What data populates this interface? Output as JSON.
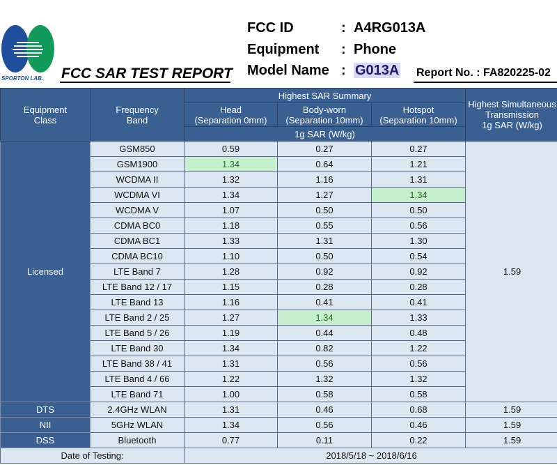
{
  "header": {
    "logo_text": "SPORTON LAB.",
    "report_title": "FCC SAR TEST REPORT",
    "fcc_id_label": "FCC ID",
    "fcc_id": "A4RG013A",
    "equipment_label": "Equipment",
    "equipment": "Phone",
    "model_label": "Model Name",
    "model": "G013A",
    "colon": ":",
    "report_no": "Report No. : FA820225-02"
  },
  "colors": {
    "header_bg": "#3a5f91",
    "cell_bg": "#dce6f1",
    "highlight": "#c6efce"
  },
  "table": {
    "col_equipment_class": "Equipment Class",
    "col_frequency_band": "Frequency Band",
    "summary": "Highest SAR Summary",
    "col_head": "Head",
    "col_head_sub": "(Separation 0mm)",
    "col_body": "Body-worn",
    "col_body_sub": "(Separation 10mm)",
    "col_hotspot": "Hotspot",
    "col_hotspot_sub": "(Separation 10mm)",
    "unit": "1g SAR (W/kg)",
    "col_simul": "Highest Simultaneous Transmission",
    "col_simul_unit": "1g SAR (W/kg)",
    "licensed_class": "Licensed",
    "licensed_simul": "1.59",
    "licensed_rows": [
      {
        "band": "GSM850",
        "head": "0.59",
        "body": "0.27",
        "hotspot": "0.27",
        "hl": ""
      },
      {
        "band": "GSM1900",
        "head": "1.34",
        "body": "0.64",
        "hotspot": "1.21",
        "hl": "head"
      },
      {
        "band": "WCDMA II",
        "head": "1.32",
        "body": "1.16",
        "hotspot": "1.31",
        "hl": ""
      },
      {
        "band": "WCDMA VI",
        "head": "1.34",
        "body": "1.27",
        "hotspot": "1.34",
        "hl": "hotspot"
      },
      {
        "band": "WCDMA V",
        "head": "1.07",
        "body": "0.50",
        "hotspot": "0.50",
        "hl": ""
      },
      {
        "band": "CDMA BC0",
        "head": "1.18",
        "body": "0.55",
        "hotspot": "0.56",
        "hl": ""
      },
      {
        "band": "CDMA BC1",
        "head": "1.33",
        "body": "1.31",
        "hotspot": "1.30",
        "hl": ""
      },
      {
        "band": "CDMA BC10",
        "head": "1.10",
        "body": "0.50",
        "hotspot": "0.54",
        "hl": ""
      },
      {
        "band": "LTE Band 7",
        "head": "1.28",
        "body": "0.92",
        "hotspot": "0.92",
        "hl": ""
      },
      {
        "band": "LTE Band 12 / 17",
        "head": "1.15",
        "body": "0.28",
        "hotspot": "0.28",
        "hl": ""
      },
      {
        "band": "LTE Band 13",
        "head": "1.16",
        "body": "0.41",
        "hotspot": "0.41",
        "hl": ""
      },
      {
        "band": "LTE Band 2 / 25",
        "head": "1.27",
        "body": "1.34",
        "hotspot": "1.33",
        "hl": "body"
      },
      {
        "band": "LTE Band 5 / 26",
        "head": "1.19",
        "body": "0.44",
        "hotspot": "0.48",
        "hl": ""
      },
      {
        "band": "LTE Band 30",
        "head": "1.34",
        "body": "0.82",
        "hotspot": "1.22",
        "hl": ""
      },
      {
        "band": "LTE Band 38 / 41",
        "head": "1.31",
        "body": "0.56",
        "hotspot": "0.56",
        "hl": ""
      },
      {
        "band": "LTE Band 4 / 66",
        "head": "1.22",
        "body": "1.32",
        "hotspot": "1.32",
        "hl": ""
      },
      {
        "band": "LTE Band 71",
        "head": "1.00",
        "body": "0.58",
        "hotspot": "0.58",
        "hl": ""
      }
    ],
    "other_rows": [
      {
        "cls": "DTS",
        "band": "2.4GHz WLAN",
        "head": "1.31",
        "body": "0.46",
        "hotspot": "0.68",
        "simul": "1.59"
      },
      {
        "cls": "NII",
        "band": "5GHz WLAN",
        "head": "1.34",
        "body": "0.56",
        "hotspot": "0.46",
        "simul": "1.59"
      },
      {
        "cls": "DSS",
        "band": "Bluetooth",
        "head": "0.77",
        "body": "0.11",
        "hotspot": "0.22",
        "simul": "1.59"
      }
    ],
    "date_label": "Date of Testing:",
    "date_value": "2018/5/18 ~ 2018/6/16"
  }
}
